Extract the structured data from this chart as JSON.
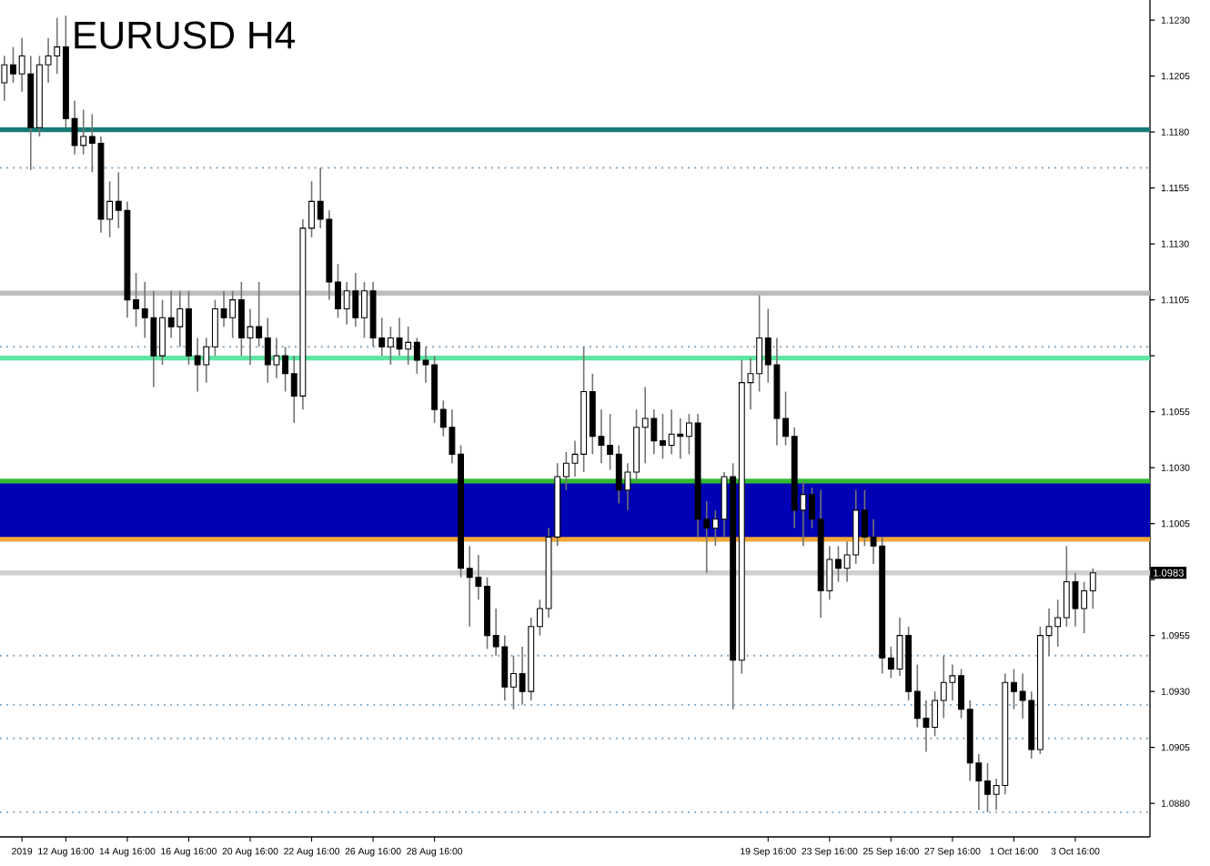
{
  "chart_data": {
    "type": "candlestick",
    "title": "EURUSD H4",
    "color": "#000000",
    "categories": [
      null,
      null,
      "2019",
      null,
      null,
      null,
      null,
      "12 Aug 16:00",
      null,
      null,
      null,
      null,
      null,
      null,
      "14 Aug 16:00",
      null,
      null,
      null,
      null,
      null,
      null,
      "16 Aug 16:00",
      null,
      null,
      null,
      null,
      null,
      null,
      "20 Aug 16:00",
      null,
      null,
      null,
      null,
      null,
      null,
      "22 Aug 16:00",
      null,
      null,
      null,
      null,
      null,
      null,
      "26 Aug 16:00",
      null,
      null,
      null,
      null,
      null,
      null,
      "28 Aug 16:00",
      null,
      null,
      null,
      null,
      null,
      null,
      null,
      null,
      null,
      null,
      null,
      null,
      null,
      null,
      null,
      null,
      null,
      null,
      null,
      null,
      null,
      null,
      null,
      null,
      null,
      null,
      null,
      null,
      null,
      null,
      null,
      null,
      null,
      null,
      null,
      null,
      null,
      "19 Sep 16:00",
      null,
      null,
      null,
      null,
      null,
      null,
      "23 Sep 16:00",
      null,
      null,
      null,
      null,
      null,
      null,
      "25 Sep 16:00",
      null,
      null,
      null,
      null,
      null,
      null,
      "27 Sep 16:00",
      null,
      null,
      null,
      null,
      null,
      null,
      "1 Oct 16:00",
      null,
      null,
      null,
      null,
      null,
      null,
      "3 Oct 16:00",
      null,
      null,
      null,
      null,
      null,
      null,
      null,
      null
    ],
    "ohlc": [
      [
        1.1202,
        1.1214,
        1.1194,
        1.121
      ],
      [
        1.121,
        1.1218,
        1.1202,
        1.1206
      ],
      [
        1.1206,
        1.1222,
        1.1198,
        1.1214
      ],
      [
        1.1206,
        1.1214,
        1.1163,
        1.1182
      ],
      [
        1.1182,
        1.1214,
        1.1178,
        1.121
      ],
      [
        1.121,
        1.1222,
        1.1202,
        1.1214
      ],
      [
        1.1214,
        1.1231,
        1.1206,
        1.1218
      ],
      [
        1.1218,
        1.1232,
        1.1182,
        1.1186
      ],
      [
        1.1186,
        1.1194,
        1.117,
        1.1174
      ],
      [
        1.1174,
        1.119,
        1.117,
        1.1178
      ],
      [
        1.1178,
        1.1188,
        1.1162,
        1.1175
      ],
      [
        1.1175,
        1.1178,
        1.1135,
        1.1141
      ],
      [
        1.1141,
        1.1158,
        1.1133,
        1.1149
      ],
      [
        1.1149,
        1.1162,
        1.1137,
        1.1145
      ],
      [
        1.1145,
        1.1149,
        1.1097,
        1.1105
      ],
      [
        1.1105,
        1.1117,
        1.1093,
        1.1101
      ],
      [
        1.1101,
        1.1113,
        1.1088,
        1.1097
      ],
      [
        1.1097,
        1.1109,
        1.1066,
        1.108
      ],
      [
        1.108,
        1.1105,
        1.1076,
        1.1097
      ],
      [
        1.1097,
        1.1109,
        1.1088,
        1.1093
      ],
      [
        1.1093,
        1.1109,
        1.1084,
        1.1101
      ],
      [
        1.1101,
        1.1109,
        1.1076,
        1.108
      ],
      [
        1.108,
        1.1088,
        1.1064,
        1.1076
      ],
      [
        1.1076,
        1.1088,
        1.1068,
        1.1084
      ],
      [
        1.1084,
        1.1105,
        1.108,
        1.1101
      ],
      [
        1.1101,
        1.1109,
        1.1093,
        1.1097
      ],
      [
        1.1097,
        1.1109,
        1.1088,
        1.1105
      ],
      [
        1.1105,
        1.1113,
        1.108,
        1.1088
      ],
      [
        1.1088,
        1.1101,
        1.1076,
        1.1093
      ],
      [
        1.1093,
        1.1113,
        1.1084,
        1.1088
      ],
      [
        1.1088,
        1.1097,
        1.1068,
        1.1076
      ],
      [
        1.1076,
        1.1088,
        1.107,
        1.108
      ],
      [
        1.108,
        1.1084,
        1.1064,
        1.1072
      ],
      [
        1.1072,
        1.108,
        1.105,
        1.1062
      ],
      [
        1.1062,
        1.1141,
        1.1056,
        1.1137
      ],
      [
        1.1137,
        1.1158,
        1.1133,
        1.1149
      ],
      [
        1.1149,
        1.1164,
        1.1137,
        1.1141
      ],
      [
        1.1141,
        1.1145,
        1.1105,
        1.1113
      ],
      [
        1.1113,
        1.1121,
        1.1097,
        1.1101
      ],
      [
        1.1101,
        1.1113,
        1.1094,
        1.1109
      ],
      [
        1.1109,
        1.1117,
        1.1093,
        1.1097
      ],
      [
        1.1097,
        1.1113,
        1.1088,
        1.1109
      ],
      [
        1.1109,
        1.1113,
        1.1084,
        1.1088
      ],
      [
        1.1088,
        1.1097,
        1.108,
        1.1084
      ],
      [
        1.1084,
        1.1093,
        1.1076,
        1.1088
      ],
      [
        1.1088,
        1.1097,
        1.108,
        1.1083
      ],
      [
        1.1083,
        1.1093,
        1.1076,
        1.1086
      ],
      [
        1.1086,
        1.1088,
        1.1072,
        1.1078
      ],
      [
        1.1078,
        1.1084,
        1.1068,
        1.1076
      ],
      [
        1.1076,
        1.108,
        1.105,
        1.1056
      ],
      [
        1.1056,
        1.106,
        1.1044,
        1.1048
      ],
      [
        1.1048,
        1.1056,
        1.1032,
        1.1036
      ],
      [
        1.1036,
        1.104,
        1.0981,
        1.0985
      ],
      [
        1.0985,
        1.0995,
        1.0959,
        1.0981
      ],
      [
        1.0981,
        1.0991,
        1.0971,
        1.0977
      ],
      [
        1.0977,
        1.0981,
        1.0949,
        1.0955
      ],
      [
        1.0955,
        1.0967,
        1.0946,
        1.095
      ],
      [
        1.095,
        1.0955,
        1.0926,
        1.0932
      ],
      [
        1.0932,
        1.0946,
        1.0922,
        1.0938
      ],
      [
        1.0938,
        1.095,
        1.0924,
        1.093
      ],
      [
        1.093,
        1.0963,
        1.0926,
        1.0959
      ],
      [
        1.0959,
        1.0971,
        1.0955,
        1.0967
      ],
      [
        1.0967,
        1.1003,
        1.0963,
        1.0999
      ],
      [
        1.0999,
        1.1032,
        1.0995,
        1.1026
      ],
      [
        1.1026,
        1.1037,
        1.102,
        1.1032
      ],
      [
        1.1032,
        1.1042,
        1.1026,
        1.1036
      ],
      [
        1.1036,
        1.1084,
        1.1028,
        1.1064
      ],
      [
        1.1064,
        1.1072,
        1.1036,
        1.1044
      ],
      [
        1.1044,
        1.1056,
        1.1032,
        1.104
      ],
      [
        1.104,
        1.1054,
        1.1029,
        1.1036
      ],
      [
        1.1036,
        1.104,
        1.1014,
        1.102
      ],
      [
        1.102,
        1.1032,
        1.1011,
        1.1028
      ],
      [
        1.1028,
        1.1056,
        1.1024,
        1.1048
      ],
      [
        1.1048,
        1.1066,
        1.1032,
        1.1052
      ],
      [
        1.1052,
        1.1056,
        1.1036,
        1.1042
      ],
      [
        1.1042,
        1.1054,
        1.1034,
        1.104
      ],
      [
        1.104,
        1.1056,
        1.1036,
        1.1045
      ],
      [
        1.1045,
        1.1052,
        1.1034,
        1.1044
      ],
      [
        1.1044,
        1.1054,
        1.1036,
        1.105
      ],
      [
        1.105,
        1.1054,
        1.0999,
        1.1007
      ],
      [
        1.1007,
        1.1015,
        1.0983,
        1.1003
      ],
      [
        1.1003,
        1.1011,
        1.0995,
        1.1007
      ],
      [
        1.1007,
        1.1028,
        1.0999,
        1.1026
      ],
      [
        1.1026,
        1.1032,
        1.0922,
        1.0944
      ],
      [
        1.0944,
        1.1078,
        1.0938,
        1.1068
      ],
      [
        1.1068,
        1.1079,
        1.1056,
        1.1072
      ],
      [
        1.1072,
        1.1107,
        1.1064,
        1.1088
      ],
      [
        1.1088,
        1.1101,
        1.1068,
        1.1076
      ],
      [
        1.1076,
        1.1088,
        1.104,
        1.1052
      ],
      [
        1.1052,
        1.1064,
        1.104,
        1.1044
      ],
      [
        1.1044,
        1.1048,
        1.1003,
        1.1011
      ],
      [
        1.1011,
        1.1024,
        1.0995,
        1.1018
      ],
      [
        1.1018,
        1.1021,
        1.1003,
        1.1007
      ],
      [
        1.1007,
        1.102,
        1.0963,
        1.0975
      ],
      [
        1.0975,
        1.0995,
        1.0971,
        1.0989
      ],
      [
        1.0989,
        1.0995,
        1.0979,
        1.0985
      ],
      [
        1.0985,
        1.0997,
        1.0979,
        1.0991
      ],
      [
        1.0991,
        1.102,
        1.0987,
        1.1011
      ],
      [
        1.1011,
        1.102,
        1.0995,
        1.0999
      ],
      [
        1.0999,
        1.1007,
        1.0987,
        1.0995
      ],
      [
        1.0995,
        1.0999,
        1.0938,
        1.0945
      ],
      [
        1.0945,
        1.095,
        1.0936,
        1.094
      ],
      [
        1.094,
        1.0963,
        1.0937,
        1.0955
      ],
      [
        1.0955,
        1.0959,
        1.0926,
        1.093
      ],
      [
        1.093,
        1.0942,
        1.0914,
        1.0918
      ],
      [
        1.0918,
        1.0926,
        1.0903,
        1.0914
      ],
      [
        1.0914,
        1.093,
        1.091,
        1.0926
      ],
      [
        1.0926,
        1.0946,
        1.0918,
        1.0934
      ],
      [
        1.0934,
        1.0942,
        1.0926,
        1.0937
      ],
      [
        1.0937,
        1.094,
        1.0918,
        1.0922
      ],
      [
        1.0922,
        1.0926,
        1.089,
        1.0898
      ],
      [
        1.0898,
        1.0902,
        1.0877,
        1.089
      ],
      [
        1.089,
        1.0898,
        1.0876,
        1.0884
      ],
      [
        1.0884,
        1.0891,
        1.0877,
        1.0888
      ],
      [
        1.0888,
        1.0938,
        1.0884,
        1.0934
      ],
      [
        1.0934,
        1.094,
        1.0922,
        1.093
      ],
      [
        1.093,
        1.0938,
        1.0918,
        1.0926
      ],
      [
        1.0926,
        1.093,
        1.09,
        1.0904
      ],
      [
        1.0904,
        1.0959,
        1.0902,
        1.0955
      ],
      [
        1.0955,
        1.0967,
        1.0946,
        1.0959
      ],
      [
        1.0959,
        1.0971,
        1.095,
        1.0963
      ],
      [
        1.0963,
        1.0995,
        1.0959,
        1.0979
      ],
      [
        1.0979,
        1.0983,
        1.0959,
        1.0967
      ],
      [
        1.0967,
        1.0979,
        1.0956,
        1.0975
      ],
      [
        1.0975,
        1.0985,
        1.0967,
        1.0983
      ],
      null,
      null,
      null,
      null,
      null,
      null
    ],
    "ylim": [
      1.0865,
      1.1239
    ],
    "yticks": [
      {
        "value": 1.088,
        "label": "1.0880"
      },
      {
        "value": 1.0905,
        "label": "1.0905"
      },
      {
        "value": 1.093,
        "label": "1.0930"
      },
      {
        "value": 1.0955,
        "label": "1.0955"
      },
      {
        "value": 1.098,
        "label": null
      },
      {
        "value": 1.1005,
        "label": "1.1005"
      },
      {
        "value": 1.103,
        "label": "1.1030"
      },
      {
        "value": 1.1055,
        "label": "1.1055"
      },
      {
        "value": 1.108,
        "label": null
      },
      {
        "value": 1.1105,
        "label": "1.1105"
      },
      {
        "value": 1.113,
        "label": "1.1130"
      },
      {
        "value": 1.1155,
        "label": "1.1155"
      },
      {
        "value": 1.118,
        "label": "1.1180"
      },
      {
        "value": 1.1205,
        "label": "1.1205"
      },
      {
        "value": 1.123,
        "label": "1.1230"
      }
    ],
    "bands": [
      {
        "axis": "y",
        "from": 1.0998,
        "to": 1.1024,
        "color": "#0000b4"
      }
    ],
    "ref_lines": [
      {
        "axis": "y",
        "value": 1.1181,
        "color": "#167a76",
        "line_style": "solid"
      },
      {
        "axis": "y",
        "value": 1.1108,
        "color": "#bdbdbd",
        "line_style": "solid"
      },
      {
        "axis": "y",
        "value": 1.1079,
        "color": "#5ee6a2",
        "line_style": "solid"
      },
      {
        "axis": "y",
        "value": 1.1024,
        "color": "#33bb33",
        "line_style": "solid"
      },
      {
        "axis": "y",
        "value": 1.0998,
        "color": "#f2a838",
        "line_style": "solid"
      },
      {
        "axis": "y",
        "value": 1.0983,
        "color": "#d0d0d0",
        "line_style": "solid",
        "label": "1.0983"
      },
      {
        "axis": "y",
        "value": 1.1164,
        "color": "#7fa3bf",
        "line_style": "dotted"
      },
      {
        "axis": "y",
        "value": 1.1084,
        "color": "#7fa3bf",
        "line_style": "dotted"
      },
      {
        "axis": "y",
        "value": 1.0946,
        "color": "#7fa3bf",
        "line_style": "dotted"
      },
      {
        "axis": "y",
        "value": 1.0924,
        "color": "#7fa3bf",
        "line_style": "dotted"
      },
      {
        "axis": "y",
        "value": 1.0909,
        "color": "#7fa3bf",
        "line_style": "dotted"
      },
      {
        "axis": "y",
        "value": 1.0876,
        "color": "#7fa3bf",
        "line_style": "dotted"
      }
    ]
  }
}
